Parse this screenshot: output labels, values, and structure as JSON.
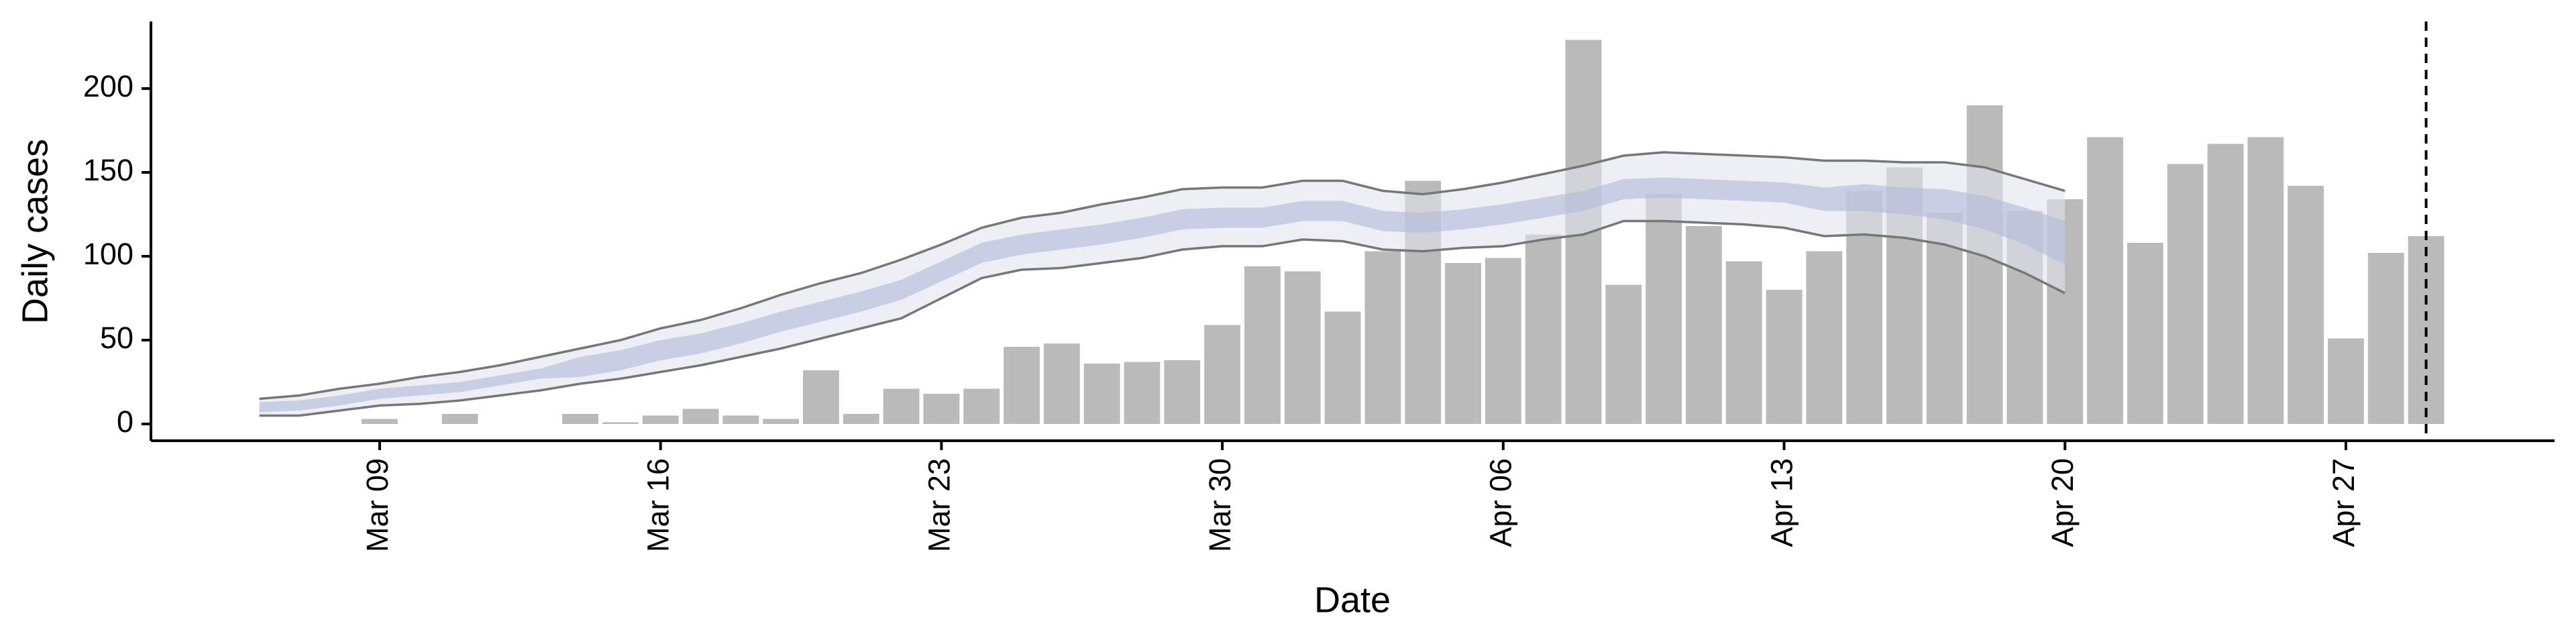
{
  "chart_data": {
    "type": "bar",
    "x_label": "Date",
    "y_label": "Daily cases",
    "categories": [
      null,
      null,
      null,
      null,
      null,
      "Mar 09",
      null,
      null,
      null,
      null,
      null,
      null,
      "Mar 16",
      null,
      null,
      null,
      null,
      null,
      null,
      "Mar 23",
      null,
      null,
      null,
      null,
      null,
      null,
      "Mar 30",
      null,
      null,
      null,
      null,
      null,
      null,
      "Apr 06",
      null,
      null,
      null,
      null,
      null,
      null,
      "Apr 13",
      null,
      null,
      null,
      null,
      null,
      null,
      "Apr 20",
      null,
      null,
      null,
      null,
      null,
      null,
      "Apr 27",
      null,
      null,
      null,
      null,
      null
    ],
    "values": [
      0,
      0,
      0,
      0,
      0,
      3,
      0,
      6,
      0,
      0,
      6,
      1,
      5,
      9,
      5,
      3,
      32,
      6,
      21,
      18,
      21,
      46,
      48,
      36,
      37,
      38,
      59,
      94,
      91,
      67,
      103,
      145,
      96,
      99,
      113,
      229,
      83,
      137,
      118,
      97,
      80,
      103,
      139,
      153,
      126,
      190,
      127,
      134,
      171,
      108,
      155,
      167,
      171,
      142,
      51,
      102,
      112,
      null,
      null,
      null
    ],
    "color": "#bababa",
    "bands": [
      {
        "lower": [
          null,
          null,
          5,
          5,
          8,
          11,
          12,
          14,
          17,
          20,
          24,
          27,
          31,
          35,
          40,
          45,
          51,
          57,
          63,
          75,
          87,
          92,
          93,
          96,
          99,
          104,
          106,
          106,
          110,
          109,
          104,
          103,
          105,
          106,
          110,
          113,
          121,
          121,
          120,
          119,
          117,
          112,
          113,
          111,
          107,
          100,
          90,
          78,
          null,
          null,
          null,
          null,
          null,
          null,
          null,
          null,
          null,
          null,
          null,
          null
        ],
        "upper": [
          null,
          null,
          15,
          17,
          21,
          24,
          28,
          31,
          35,
          40,
          45,
          50,
          57,
          62,
          69,
          77,
          84,
          90,
          98,
          107,
          117,
          123,
          126,
          131,
          135,
          140,
          141,
          141,
          145,
          145,
          139,
          137,
          140,
          144,
          149,
          154,
          160,
          162,
          161,
          160,
          159,
          157,
          157,
          156,
          156,
          153,
          146,
          139,
          null,
          null,
          null,
          null,
          null,
          null,
          null,
          null,
          null,
          null,
          null,
          null
        ],
        "fill": "#e3e5ef",
        "line_color": "#777777"
      },
      {
        "lower": [
          null,
          null,
          7,
          8,
          11,
          15,
          17,
          19,
          23,
          27,
          28,
          32,
          38,
          42,
          48,
          55,
          61,
          67,
          74,
          85,
          96,
          101,
          104,
          107,
          111,
          116,
          117,
          117,
          121,
          121,
          115,
          114,
          116,
          119,
          123,
          127,
          134,
          135,
          134,
          133,
          132,
          127,
          127,
          125,
          122,
          116,
          107,
          95,
          null,
          null,
          null,
          null,
          null,
          null,
          null,
          null,
          null,
          null,
          null,
          null
        ],
        "upper": [
          null,
          null,
          13,
          14,
          17,
          21,
          23,
          25,
          29,
          33,
          40,
          44,
          50,
          54,
          60,
          67,
          73,
          79,
          86,
          97,
          108,
          113,
          116,
          119,
          123,
          128,
          129,
          129,
          133,
          133,
          127,
          126,
          128,
          131,
          135,
          139,
          146,
          147,
          146,
          145,
          144,
          141,
          143,
          141,
          140,
          136,
          129,
          121,
          null,
          null,
          null,
          null,
          null,
          null,
          null,
          null,
          null,
          null,
          null,
          null
        ],
        "fill": "#b4bcd8",
        "line_color": null
      }
    ],
    "vline_at": 56,
    "ylim": [
      -10,
      240
    ],
    "yticks": [
      0,
      50,
      100,
      150,
      200
    ],
    "grid": false
  }
}
